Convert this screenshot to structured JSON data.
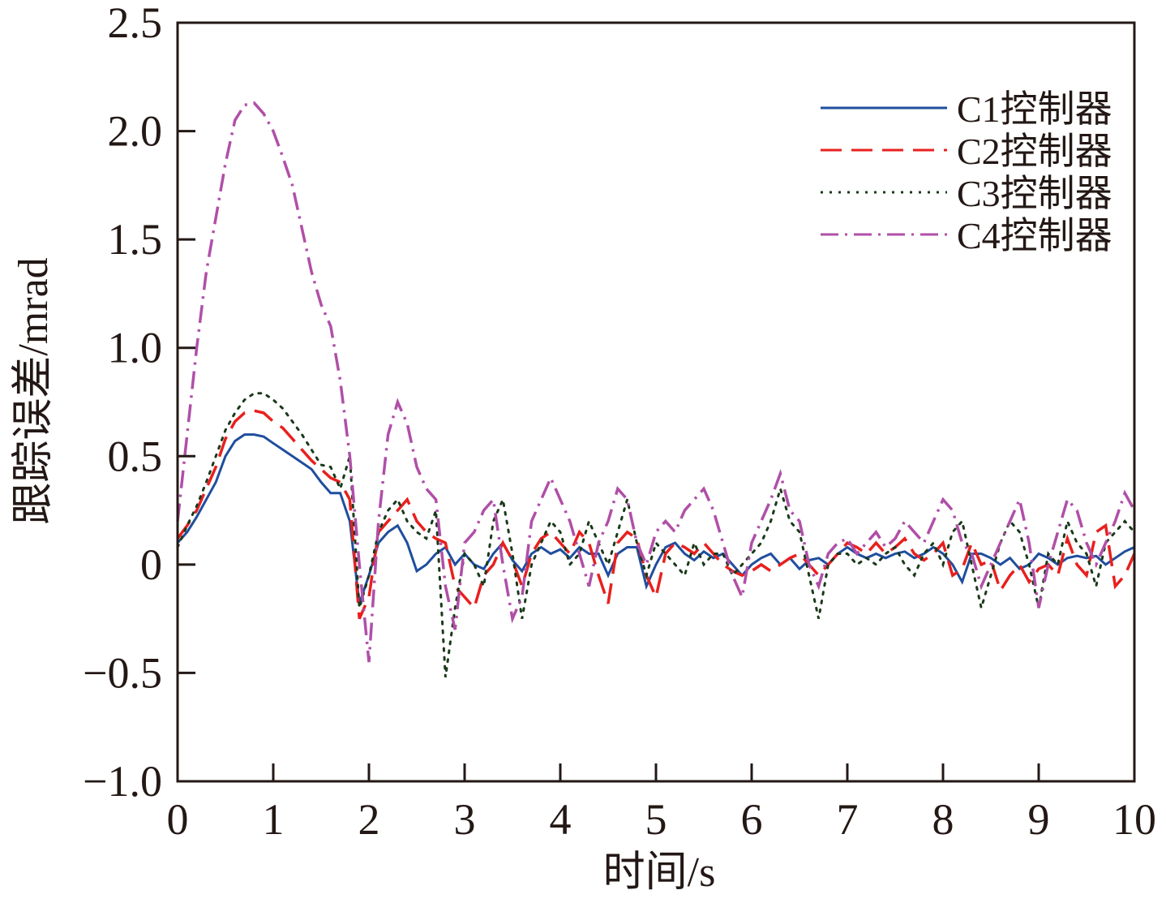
{
  "chart_data": {
    "type": "line",
    "title": "",
    "xlabel": "时间/s",
    "ylabel": "跟踪误差/mrad",
    "xlim": [
      0,
      10
    ],
    "ylim": [
      -1.0,
      2.5
    ],
    "xticks": [
      0,
      1,
      2,
      3,
      4,
      5,
      6,
      7,
      8,
      9,
      10
    ],
    "xtick_labels": [
      "0",
      "1",
      "2",
      "3",
      "4",
      "5",
      "6",
      "7",
      "8",
      "9",
      "10"
    ],
    "yticks": [
      -1.0,
      -0.5,
      0,
      0.5,
      1.0,
      1.5,
      2.0,
      2.5
    ],
    "ytick_labels": [
      "−1.0",
      "−0.5",
      "0",
      "0.5",
      "1.0",
      "1.5",
      "2.0",
      "2.5"
    ],
    "grid": false,
    "legend_position": "top-right",
    "x_step": 0.1,
    "series": [
      {
        "name": "C1控制器",
        "color": "#1f4e9e",
        "style": "solid",
        "values": [
          0.1,
          0.15,
          0.22,
          0.3,
          0.38,
          0.5,
          0.57,
          0.6,
          0.6,
          0.59,
          0.56,
          0.53,
          0.5,
          0.47,
          0.44,
          0.38,
          0.33,
          0.33,
          0.2,
          -0.18,
          -0.05,
          0.1,
          0.15,
          0.18,
          0.1,
          -0.03,
          0.0,
          0.05,
          0.08,
          0.0,
          0.05,
          0.0,
          -0.02,
          0.05,
          0.1,
          0.02,
          -0.03,
          0.05,
          0.08,
          0.05,
          0.07,
          0.03,
          0.08,
          0.05,
          0.05,
          -0.05,
          0.05,
          0.08,
          0.08,
          -0.1,
          0.0,
          0.08,
          0.1,
          0.05,
          0.02,
          0.06,
          0.03,
          0.05,
          0.0,
          -0.05,
          0.0,
          0.03,
          0.05,
          0.0,
          0.03,
          -0.02,
          0.02,
          0.03,
          0.0,
          0.05,
          0.08,
          0.05,
          0.03,
          0.05,
          0.03,
          0.05,
          0.06,
          0.03,
          0.05,
          0.08,
          0.05,
          0.0,
          -0.08,
          0.05,
          0.05,
          0.03,
          0.0,
          0.03,
          -0.02,
          0.0,
          0.05,
          0.03,
          0.0,
          0.03,
          0.04,
          0.03,
          0.04,
          0.0,
          0.03,
          0.06,
          0.08
        ]
      },
      {
        "name": "C2控制器",
        "color": "#e8201e",
        "style": "dashed",
        "values": [
          0.12,
          0.18,
          0.25,
          0.35,
          0.45,
          0.58,
          0.66,
          0.7,
          0.71,
          0.7,
          0.66,
          0.63,
          0.58,
          0.53,
          0.48,
          0.44,
          0.4,
          0.38,
          0.3,
          -0.25,
          -0.15,
          0.15,
          0.2,
          0.25,
          0.3,
          0.2,
          0.15,
          0.12,
          0.1,
          -0.1,
          -0.15,
          -0.2,
          -0.05,
          0.0,
          0.1,
          0.02,
          -0.1,
          0.05,
          0.12,
          0.15,
          0.1,
          0.05,
          0.15,
          0.1,
          -0.05,
          -0.18,
          0.1,
          0.15,
          0.12,
          -0.05,
          -0.15,
          0.05,
          0.1,
          0.08,
          0.05,
          0.1,
          0.05,
          0.0,
          -0.03,
          -0.05,
          -0.03,
          0.0,
          -0.03,
          0.0,
          0.03,
          0.05,
          0.0,
          -0.05,
          0.0,
          0.05,
          0.1,
          0.08,
          0.05,
          0.1,
          0.05,
          0.08,
          0.12,
          0.05,
          0.02,
          0.05,
          0.1,
          -0.05,
          -0.02,
          0.1,
          0.0,
          0.02,
          -0.12,
          -0.05,
          0.0,
          -0.08,
          -0.02,
          0.0,
          -0.05,
          0.12,
          0.0,
          -0.05,
          0.15,
          0.18,
          -0.1,
          -0.05,
          0.05
        ]
      },
      {
        "name": "C3控制器",
        "color": "#1a3a1a",
        "style": "dotted",
        "values": [
          0.08,
          0.18,
          0.27,
          0.38,
          0.5,
          0.62,
          0.7,
          0.76,
          0.79,
          0.79,
          0.76,
          0.72,
          0.66,
          0.6,
          0.53,
          0.46,
          0.45,
          0.35,
          0.5,
          -0.2,
          -0.05,
          0.15,
          0.25,
          0.3,
          0.2,
          0.15,
          0.12,
          0.25,
          -0.52,
          -0.2,
          0.05,
          0.0,
          -0.1,
          0.2,
          0.3,
          0.05,
          -0.25,
          0.0,
          0.1,
          0.2,
          0.15,
          0.0,
          0.05,
          0.2,
          0.1,
          0.0,
          0.15,
          0.3,
          0.1,
          -0.05,
          0.1,
          0.05,
          0.0,
          -0.05,
          0.1,
          0.0,
          0.05,
          0.05,
          -0.05,
          0.0,
          0.05,
          0.1,
          0.2,
          0.35,
          0.2,
          0.15,
          -0.05,
          -0.25,
          0.0,
          0.05,
          0.05,
          0.0,
          0.03,
          0.0,
          0.05,
          0.08,
          0.0,
          -0.05,
          0.05,
          0.1,
          0.0,
          0.15,
          0.2,
          0.0,
          -0.2,
          -0.05,
          0.1,
          0.2,
          0.15,
          0.0,
          -0.2,
          0.05,
          0.0,
          0.2,
          0.1,
          0.05,
          -0.1,
          0.1,
          0.15,
          0.2,
          0.15
        ]
      },
      {
        "name": "C4控制器",
        "color": "#b04fa8",
        "style": "dashdot",
        "values": [
          0.2,
          0.6,
          1.0,
          1.35,
          1.6,
          1.85,
          2.05,
          2.12,
          2.13,
          2.08,
          2.0,
          1.88,
          1.75,
          1.55,
          1.35,
          1.2,
          1.1,
          0.85,
          0.5,
          0.0,
          -0.45,
          0.2,
          0.6,
          0.75,
          0.65,
          0.45,
          0.35,
          0.3,
          -0.1,
          -0.3,
          0.1,
          0.15,
          0.25,
          0.3,
          0.0,
          -0.25,
          -0.15,
          0.2,
          0.3,
          0.4,
          0.3,
          0.2,
          0.05,
          -0.1,
          0.1,
          0.2,
          0.35,
          0.3,
          0.1,
          0.0,
          0.15,
          0.2,
          0.15,
          0.25,
          0.3,
          0.35,
          0.25,
          0.1,
          -0.05,
          -0.15,
          0.1,
          0.2,
          0.3,
          0.42,
          0.25,
          0.2,
          0.0,
          -0.1,
          0.05,
          0.1,
          0.12,
          0.05,
          0.1,
          0.15,
          0.08,
          0.12,
          0.2,
          0.15,
          0.1,
          0.2,
          0.3,
          0.25,
          0.1,
          0.05,
          -0.1,
          0.0,
          0.1,
          0.2,
          0.3,
          0.1,
          -0.2,
          0.0,
          0.15,
          0.3,
          0.25,
          0.1,
          0.0,
          0.1,
          0.2,
          0.33,
          0.25
        ]
      }
    ]
  }
}
